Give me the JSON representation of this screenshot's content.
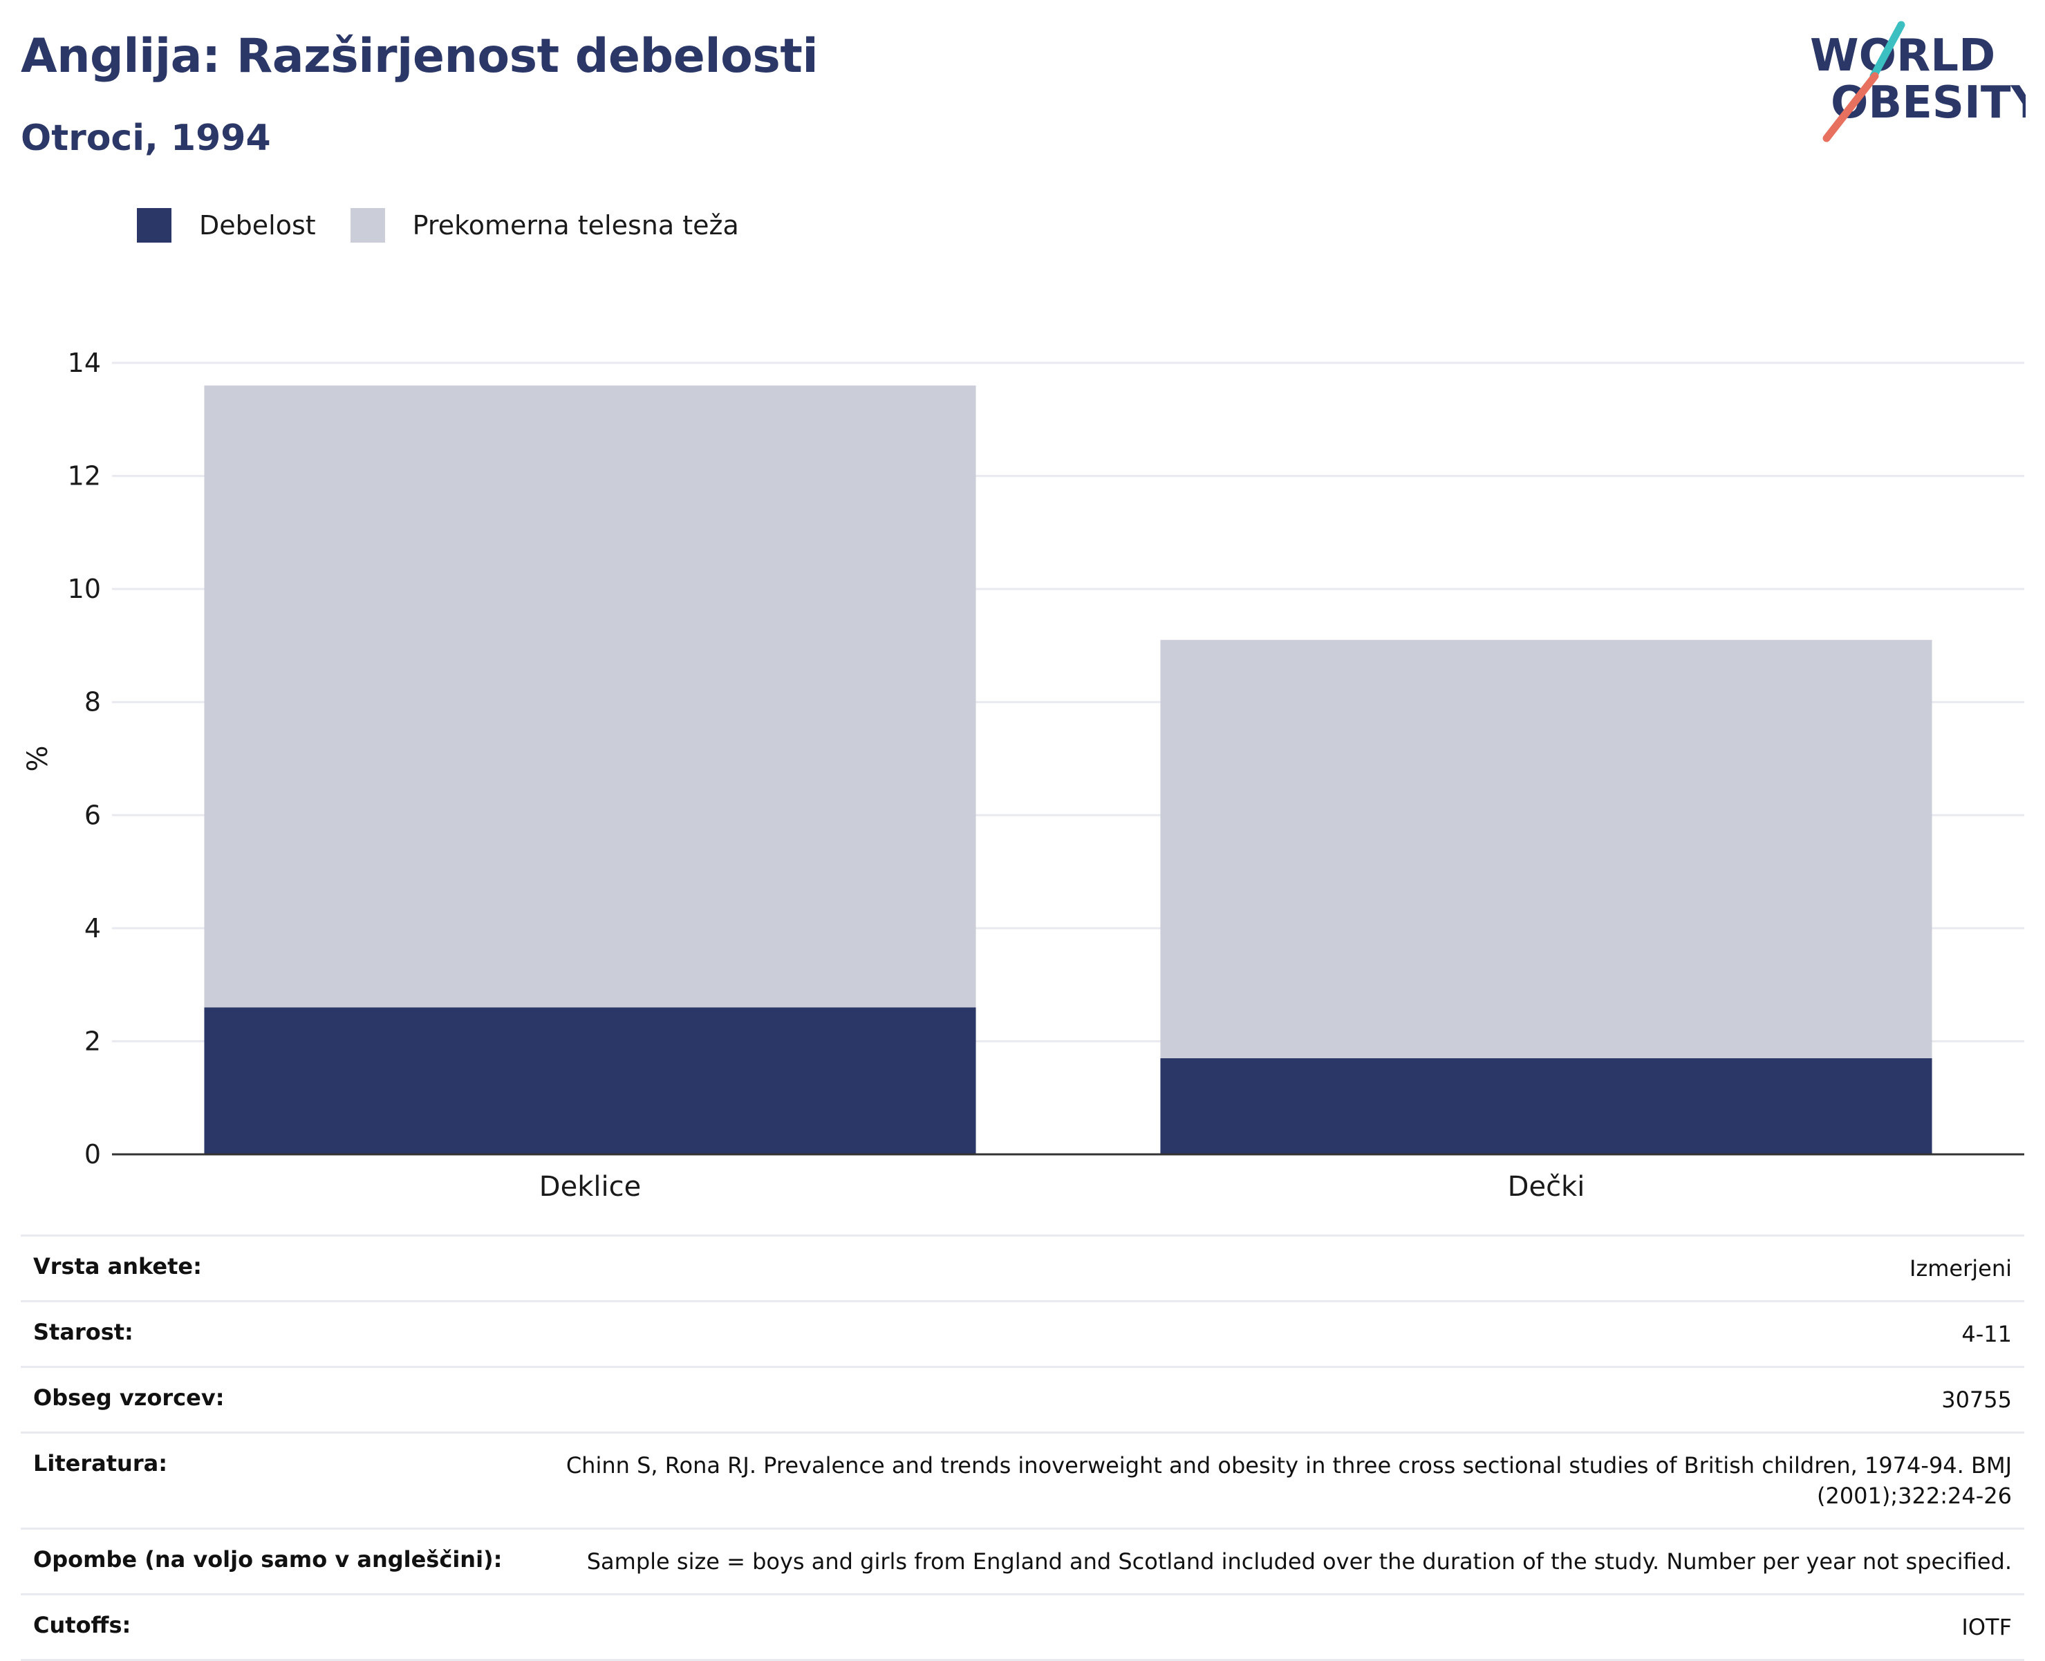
{
  "header": {
    "title": "Anglija: Razširjenost debelosti",
    "subtitle": "Otroci, 1994"
  },
  "logo": {
    "line1": "WORLD",
    "line2": "OBESITY",
    "colors": {
      "text": "#2b3766",
      "slash_teal": "#3bbfc0",
      "slash_coral": "#e8705f"
    }
  },
  "legend": [
    {
      "label": "Debelost",
      "color": "#2b3766"
    },
    {
      "label": "Prekomerna telesna teža",
      "color": "#cbcdd8"
    }
  ],
  "chart_data": {
    "type": "bar",
    "stacked": true,
    "categories": [
      "Deklice",
      "Dečki"
    ],
    "series": [
      {
        "name": "Debelost",
        "color": "#2b3766",
        "values": [
          2.6,
          1.7
        ]
      },
      {
        "name": "Prekomerna telesna teža",
        "color": "#cbcdd8",
        "values": [
          11.0,
          7.4
        ]
      }
    ],
    "ylabel": "%",
    "ylim": [
      0,
      14
    ],
    "yticks": [
      0,
      2,
      4,
      6,
      8,
      10,
      12,
      14
    ],
    "grid": true,
    "legend_position": "top-left"
  },
  "info": [
    {
      "label": "Vrsta ankete:",
      "value": "Izmerjeni"
    },
    {
      "label": "Starost:",
      "value": "4-11"
    },
    {
      "label": "Obseg vzorcev:",
      "value": "30755"
    },
    {
      "label": "Literatura:",
      "value": "Chinn S, Rona RJ. Prevalence and trends inoverweight and obesity in three cross sectional studies of British children, 1974-94. BMJ (2001);322:24-26"
    },
    {
      "label": "Opombe (na voljo samo v angleščini):",
      "value": "Sample size = boys and girls from England and Scotland included over the duration of the study. Number per year not specified."
    },
    {
      "label": "Cutoffs:",
      "value": "IOTF"
    }
  ]
}
